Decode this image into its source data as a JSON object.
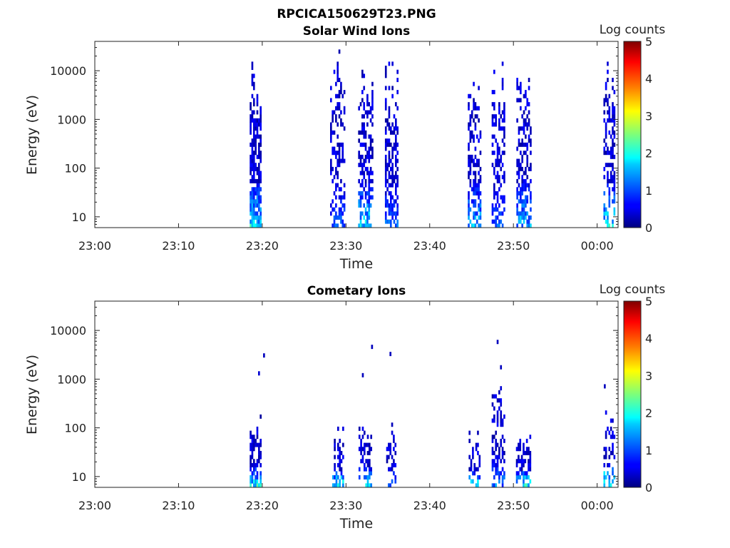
{
  "figure_title": "RPCICA150629T23.PNG",
  "chart_data": [
    {
      "type": "heatmap",
      "title": "Solar Wind Ions",
      "xlabel": "Time",
      "ylabel": "Energy (eV)",
      "x_ticks": [
        "23:00",
        "23:10",
        "23:20",
        "23:30",
        "23:40",
        "23:50",
        "00:00"
      ],
      "x_tick_minutes": [
        0,
        10,
        20,
        30,
        40,
        50,
        60
      ],
      "xlim_minutes": [
        0,
        62.5
      ],
      "y_scale": "log",
      "y_ticks": [
        "10",
        "100",
        "1000",
        "10000"
      ],
      "y_tick_values": [
        10,
        100,
        1000,
        10000
      ],
      "ylim": [
        6,
        40000
      ],
      "colorbar": {
        "label": "Log counts",
        "ticks": [
          "0",
          "1",
          "2",
          "3",
          "4",
          "5"
        ],
        "range": [
          0,
          5
        ],
        "colormap": "jet"
      },
      "bursts": [
        {
          "minute": 19.2,
          "width_min": 1.4,
          "emin": 6,
          "emax": 14000,
          "density": 0.85,
          "low_peak": 2.3
        },
        {
          "minute": 29.0,
          "width_min": 1.8,
          "emin": 6,
          "emax": 30000,
          "density": 0.45,
          "low_peak": 1.3
        },
        {
          "minute": 32.3,
          "width_min": 1.7,
          "emin": 6,
          "emax": 14000,
          "density": 0.55,
          "low_peak": 2.2
        },
        {
          "minute": 35.4,
          "width_min": 1.5,
          "emin": 6,
          "emax": 20000,
          "density": 0.55,
          "low_peak": 1.4
        },
        {
          "minute": 45.3,
          "width_min": 1.5,
          "emin": 6,
          "emax": 18000,
          "density": 0.55,
          "low_peak": 1.9
        },
        {
          "minute": 48.2,
          "width_min": 1.6,
          "emin": 6,
          "emax": 14000,
          "density": 0.55,
          "low_peak": 1.3
        },
        {
          "minute": 51.2,
          "width_min": 1.7,
          "emin": 6,
          "emax": 18000,
          "density": 0.55,
          "low_peak": 2.0
        },
        {
          "minute": 61.4,
          "width_min": 1.3,
          "emin": 6,
          "emax": 20000,
          "density": 0.5,
          "low_peak": 2.2
        }
      ]
    },
    {
      "type": "heatmap",
      "title": "Cometary Ions",
      "xlabel": "Time",
      "ylabel": "Energy (eV)",
      "x_ticks": [
        "23:00",
        "23:10",
        "23:20",
        "23:30",
        "23:40",
        "23:50",
        "00:00"
      ],
      "x_tick_minutes": [
        0,
        10,
        20,
        30,
        40,
        50,
        60
      ],
      "xlim_minutes": [
        0,
        62.5
      ],
      "y_scale": "log",
      "y_ticks": [
        "10",
        "100",
        "1000",
        "10000"
      ],
      "y_tick_values": [
        10,
        100,
        1000,
        10000
      ],
      "ylim": [
        6,
        40000
      ],
      "colorbar": {
        "label": "Log counts",
        "ticks": [
          "0",
          "1",
          "2",
          "3",
          "4",
          "5"
        ],
        "range": [
          0,
          5
        ],
        "colormap": "jet"
      },
      "bursts": [
        {
          "minute": 19.2,
          "width_min": 1.4,
          "emin": 6,
          "emax": 180,
          "density": 0.7,
          "low_peak": 2.4
        },
        {
          "minute": 29.0,
          "width_min": 1.3,
          "emin": 6,
          "emax": 120,
          "density": 0.5,
          "low_peak": 2.4
        },
        {
          "minute": 32.3,
          "width_min": 1.6,
          "emin": 6,
          "emax": 130,
          "density": 0.45,
          "low_peak": 2.3
        },
        {
          "minute": 35.4,
          "width_min": 1.2,
          "emin": 6,
          "emax": 120,
          "density": 0.35,
          "low_peak": 1.8
        },
        {
          "minute": 45.3,
          "width_min": 1.3,
          "emin": 6,
          "emax": 90,
          "density": 0.5,
          "low_peak": 2.3
        },
        {
          "minute": 48.2,
          "width_min": 1.6,
          "emin": 6,
          "emax": 800,
          "density": 0.5,
          "low_peak": 1.6
        },
        {
          "minute": 51.2,
          "width_min": 1.8,
          "emin": 6,
          "emax": 110,
          "density": 0.55,
          "low_peak": 2.6
        },
        {
          "minute": 61.4,
          "width_min": 1.3,
          "emin": 6,
          "emax": 240,
          "density": 0.45,
          "low_peak": 3.0
        }
      ],
      "isolated_points": [
        {
          "minute": 20.1,
          "energy": 2800,
          "level": 0.3
        },
        {
          "minute": 19.5,
          "energy": 1200,
          "level": 0.4
        },
        {
          "minute": 33.0,
          "energy": 4200,
          "level": 0.3
        },
        {
          "minute": 35.2,
          "energy": 3000,
          "level": 0.3
        },
        {
          "minute": 31.9,
          "energy": 1100,
          "level": 0.3
        },
        {
          "minute": 48.0,
          "energy": 5300,
          "level": 0.3
        },
        {
          "minute": 48.4,
          "energy": 1600,
          "level": 0.3
        },
        {
          "minute": 60.8,
          "energy": 650,
          "level": 0.3
        }
      ]
    }
  ]
}
